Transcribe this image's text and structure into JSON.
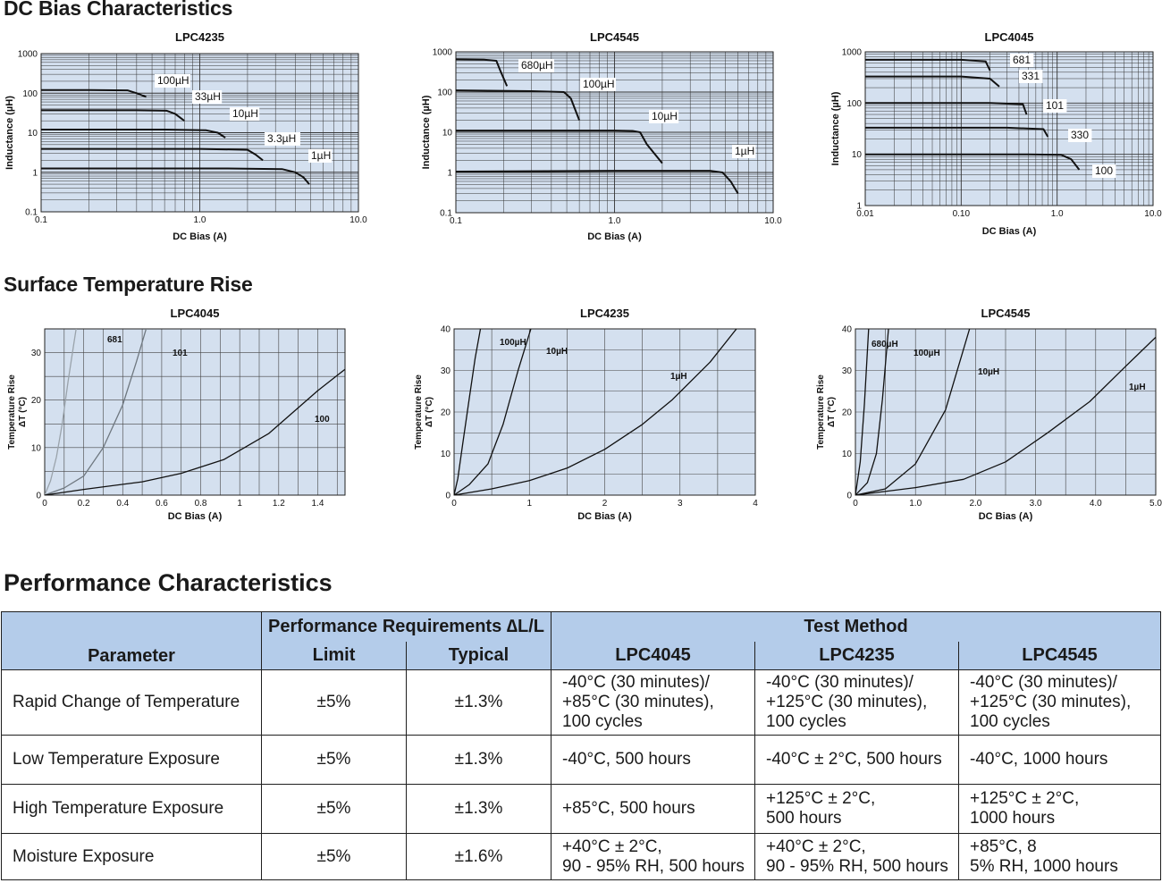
{
  "sections": {
    "dc_bias": "DC Bias Characteristics",
    "temp_rise": "Surface Temperature Rise",
    "performance": "Performance Characteristics"
  },
  "chart_data": [
    {
      "type": "line",
      "title": "LPC4235",
      "xlabel": "DC Bias (A)",
      "ylabel": "Inductance (µH)",
      "xscale": "log",
      "yscale": "log",
      "xlim": [
        0.1,
        10
      ],
      "ylim": [
        0.1,
        1000
      ],
      "xticks": [
        "0.1",
        "1.0",
        "10.0"
      ],
      "yticks": [
        "0.1",
        "1",
        "10",
        "100",
        "1000"
      ],
      "grid": true,
      "series": [
        {
          "name": "100µH",
          "x": [
            0.1,
            0.2,
            0.35,
            0.4,
            0.46
          ],
          "y": [
            120,
            120,
            118,
            100,
            80
          ]
        },
        {
          "name": "33µH",
          "x": [
            0.1,
            0.4,
            0.62,
            0.7,
            0.8
          ],
          "y": [
            37,
            37,
            36,
            30,
            20
          ]
        },
        {
          "name": "10µH",
          "x": [
            0.1,
            0.6,
            1.1,
            1.3,
            1.45
          ],
          "y": [
            12,
            12,
            11.5,
            10,
            7.5
          ]
        },
        {
          "name": "3.3µH",
          "x": [
            0.1,
            1.0,
            2.0,
            2.25,
            2.5
          ],
          "y": [
            3.9,
            3.9,
            3.7,
            2.8,
            2.0
          ]
        },
        {
          "name": "1µH",
          "x": [
            0.1,
            1.5,
            3.3,
            4.0,
            4.5,
            4.9
          ],
          "y": [
            1.25,
            1.25,
            1.2,
            1.0,
            0.75,
            0.5
          ]
        }
      ],
      "labels": [
        "100µH",
        "33µH",
        "10µH",
        "3.3µH",
        "1µH"
      ]
    },
    {
      "type": "line",
      "title": "LPC4545",
      "xlabel": "DC Bias (A)",
      "ylabel": "Inductance (µH)",
      "xscale": "log",
      "yscale": "log",
      "xlim": [
        0.1,
        10
      ],
      "ylim": [
        0.1,
        1000
      ],
      "xticks": [
        "0.1",
        "1.0",
        "10.0"
      ],
      "yticks": [
        "0.1",
        "1",
        "10",
        "100",
        "1000"
      ],
      "grid": true,
      "series": [
        {
          "name": "680µH",
          "x": [
            0.1,
            0.15,
            0.18,
            0.19,
            0.21
          ],
          "y": [
            650,
            640,
            600,
            350,
            140
          ]
        },
        {
          "name": "100µH",
          "x": [
            0.1,
            0.3,
            0.48,
            0.53,
            0.6
          ],
          "y": [
            110,
            105,
            100,
            70,
            20
          ]
        },
        {
          "name": "10µH",
          "x": [
            0.1,
            1.0,
            1.3,
            1.45,
            1.6,
            2.0
          ],
          "y": [
            11,
            11,
            10.8,
            10,
            5,
            1.7
          ]
        },
        {
          "name": "1µH",
          "x": [
            0.1,
            1.0,
            4.0,
            4.8,
            5.4,
            6.0
          ],
          "y": [
            1.05,
            1.1,
            1.1,
            1.0,
            0.6,
            0.3
          ]
        }
      ],
      "labels": [
        "680µH",
        "100µH",
        "10µH",
        "1µH"
      ]
    },
    {
      "type": "line",
      "title": "LPC4045",
      "xlabel": "DC Bias (A)",
      "ylabel": "Inductance (µH)",
      "xscale": "log",
      "yscale": "log",
      "xlim": [
        0.01,
        10
      ],
      "ylim": [
        1,
        1000
      ],
      "xticks": [
        "0.01",
        "0.10",
        "1.0",
        "10.0"
      ],
      "yticks": [
        "1",
        "10",
        "100",
        "1000"
      ],
      "grid": true,
      "series": [
        {
          "name": "681",
          "x": [
            0.01,
            0.1,
            0.18,
            0.2
          ],
          "y": [
            700,
            700,
            650,
            430
          ]
        },
        {
          "name": "331",
          "x": [
            0.01,
            0.1,
            0.2,
            0.25
          ],
          "y": [
            330,
            330,
            300,
            210
          ]
        },
        {
          "name": "101",
          "x": [
            0.01,
            0.2,
            0.44,
            0.48
          ],
          "y": [
            100,
            100,
            95,
            60
          ]
        },
        {
          "name": "330",
          "x": [
            0.01,
            0.3,
            0.72,
            0.8
          ],
          "y": [
            33,
            33,
            31,
            22
          ]
        },
        {
          "name": "100",
          "x": [
            0.01,
            0.5,
            1.1,
            1.4,
            1.7
          ],
          "y": [
            10,
            10,
            9.8,
            8,
            5
          ]
        }
      ],
      "labels": [
        "681",
        "331",
        "101",
        "330",
        "100"
      ]
    },
    {
      "type": "line",
      "title": "LPC4045",
      "xlabel": "DC Bias (A)",
      "ylabel": "Temperature Rise ΔT (°C)",
      "ylabel_lines": [
        "Temperature Rise",
        "ΔT (°C)"
      ],
      "xlim": [
        0,
        1.54
      ],
      "ylim": [
        0,
        35
      ],
      "xticks": [
        "0",
        "0.2",
        "0.4",
        "0.6",
        "0.8",
        "1",
        "1.2",
        "1.4"
      ],
      "yticks": [
        "0",
        "10",
        "20",
        "30"
      ],
      "grid": true,
      "series": [
        {
          "name": "681",
          "color": "#9aa3ab",
          "x": [
            0,
            0.03,
            0.06,
            0.09,
            0.12,
            0.15,
            0.18
          ],
          "y": [
            0,
            3,
            8,
            15,
            24,
            32,
            40
          ]
        },
        {
          "name": "101",
          "color": "#6f7880",
          "x": [
            0,
            0.1,
            0.2,
            0.3,
            0.4,
            0.47,
            0.52
          ],
          "y": [
            0,
            1.5,
            4,
            10,
            19,
            28,
            35
          ]
        },
        {
          "name": "100",
          "color": "#111111",
          "x": [
            0,
            0.2,
            0.5,
            0.7,
            0.92,
            1.15,
            1.4,
            1.54
          ],
          "y": [
            0,
            1.2,
            2.8,
            4.6,
            7.5,
            13,
            22,
            26.5
          ]
        }
      ],
      "labels": [
        "681",
        "101",
        "100"
      ]
    },
    {
      "type": "line",
      "title": "LPC4235",
      "xlabel": "DC Bias (A)",
      "ylabel": "Temperature Rise ΔT (°C)",
      "ylabel_lines": [
        "Temperature Rise",
        "ΔT (°C)"
      ],
      "xlim": [
        0,
        4
      ],
      "ylim": [
        0,
        40
      ],
      "xticks": [
        "0",
        "1",
        "2",
        "3",
        "4"
      ],
      "yticks": [
        "0",
        "10",
        "20",
        "30",
        "40"
      ],
      "grid": true,
      "series": [
        {
          "name": "100µH",
          "color": "#111111",
          "x": [
            0,
            0.05,
            0.12,
            0.2,
            0.28,
            0.35
          ],
          "y": [
            0,
            4,
            13,
            23,
            33,
            40
          ]
        },
        {
          "name": "10µH",
          "color": "#111111",
          "x": [
            0,
            0.2,
            0.45,
            0.65,
            0.85,
            1.02
          ],
          "y": [
            0,
            2.5,
            7.5,
            17,
            30,
            40
          ]
        },
        {
          "name": "1µH",
          "color": "#111111",
          "x": [
            0,
            0.5,
            1.0,
            1.5,
            2.0,
            2.5,
            2.9,
            3.4,
            3.75
          ],
          "y": [
            0,
            1.5,
            3.5,
            6.5,
            11,
            17,
            23,
            32,
            40
          ]
        }
      ],
      "labels": [
        "100µH",
        "10µH",
        "1µH"
      ]
    },
    {
      "type": "line",
      "title": "LPC4545",
      "xlabel": "DC Bias (A)",
      "ylabel": "Temperature Rise ΔT (°C)",
      "ylabel_lines": [
        "Temperature Rise",
        "ΔT (°C)"
      ],
      "xlim": [
        0,
        5
      ],
      "ylim": [
        0,
        40
      ],
      "xticks": [
        "0",
        "1.0",
        "2.0",
        "3.0",
        "4.0",
        "5.0"
      ],
      "yticks": [
        "0",
        "10",
        "20",
        "30",
        "40"
      ],
      "grid": true,
      "series": [
        {
          "name": "680µH",
          "color": "#111111",
          "x": [
            0,
            0.08,
            0.15,
            0.22
          ],
          "y": [
            0,
            8,
            22,
            40
          ]
        },
        {
          "name": "100µH",
          "color": "#111111",
          "x": [
            0,
            0.2,
            0.35,
            0.45,
            0.55
          ],
          "y": [
            0,
            3,
            10,
            23,
            40
          ]
        },
        {
          "name": "10µH",
          "color": "#111111",
          "x": [
            0,
            0.5,
            1.0,
            1.5,
            1.9
          ],
          "y": [
            0,
            1.5,
            7.5,
            20.5,
            40
          ]
        },
        {
          "name": "1µH",
          "color": "#111111",
          "x": [
            0,
            1.0,
            1.8,
            2.5,
            3.2,
            3.9,
            4.5,
            5.0
          ],
          "y": [
            0,
            1.8,
            3.8,
            8,
            15,
            22.5,
            31,
            38
          ]
        }
      ],
      "labels": [
        "680µH",
        "100µH",
        "10µH",
        "1µH"
      ]
    }
  ],
  "table": {
    "header": {
      "parameter": "Parameter",
      "perf_req": "Performance Requirements ∆L/L",
      "limit": "Limit",
      "typical": "Typical",
      "test_method": "Test Method",
      "lpc4045": "LPC4045",
      "lpc4235": "LPC4235",
      "lpc4545": "LPC4545"
    },
    "rows": [
      {
        "parameter": "Rapid Change of Temperature",
        "limit": "±5%",
        "typical": "±1.3%",
        "lpc4045": [
          "-40°C (30 minutes)/",
          "+85°C (30 minutes),",
          "100 cycles"
        ],
        "lpc4235": [
          "-40°C (30 minutes)/",
          "+125°C (30 minutes),",
          "100 cycles"
        ],
        "lpc4545": [
          "-40°C (30 minutes)/",
          "+125°C (30 minutes),",
          "100 cycles"
        ]
      },
      {
        "parameter": "Low Temperature Exposure",
        "limit": "±5%",
        "typical": "±1.3%",
        "lpc4045": [
          "-40°C, 500 hours"
        ],
        "lpc4235": [
          "-40°C ± 2°C, 500 hours"
        ],
        "lpc4545": [
          "-40°C, 1000 hours"
        ]
      },
      {
        "parameter": "High Temperature Exposure",
        "limit": "±5%",
        "typical": "±1.3%",
        "lpc4045": [
          "+85°C, 500 hours"
        ],
        "lpc4235": [
          "+125°C ± 2°C,",
          "500 hours"
        ],
        "lpc4545": [
          "+125°C ± 2°C,",
          "1000 hours"
        ]
      },
      {
        "parameter": "Moisture Exposure",
        "limit": "±5%",
        "typical": "±1.6%",
        "lpc4045": [
          "+40°C ± 2°C,",
          "90 - 95% RH, 500 hours"
        ],
        "lpc4235": [
          "+40°C ± 2°C,",
          "90 - 95% RH, 500 hours"
        ],
        "lpc4545": [
          "+85°C, 8",
          "5% RH, 1000 hours"
        ]
      }
    ]
  }
}
